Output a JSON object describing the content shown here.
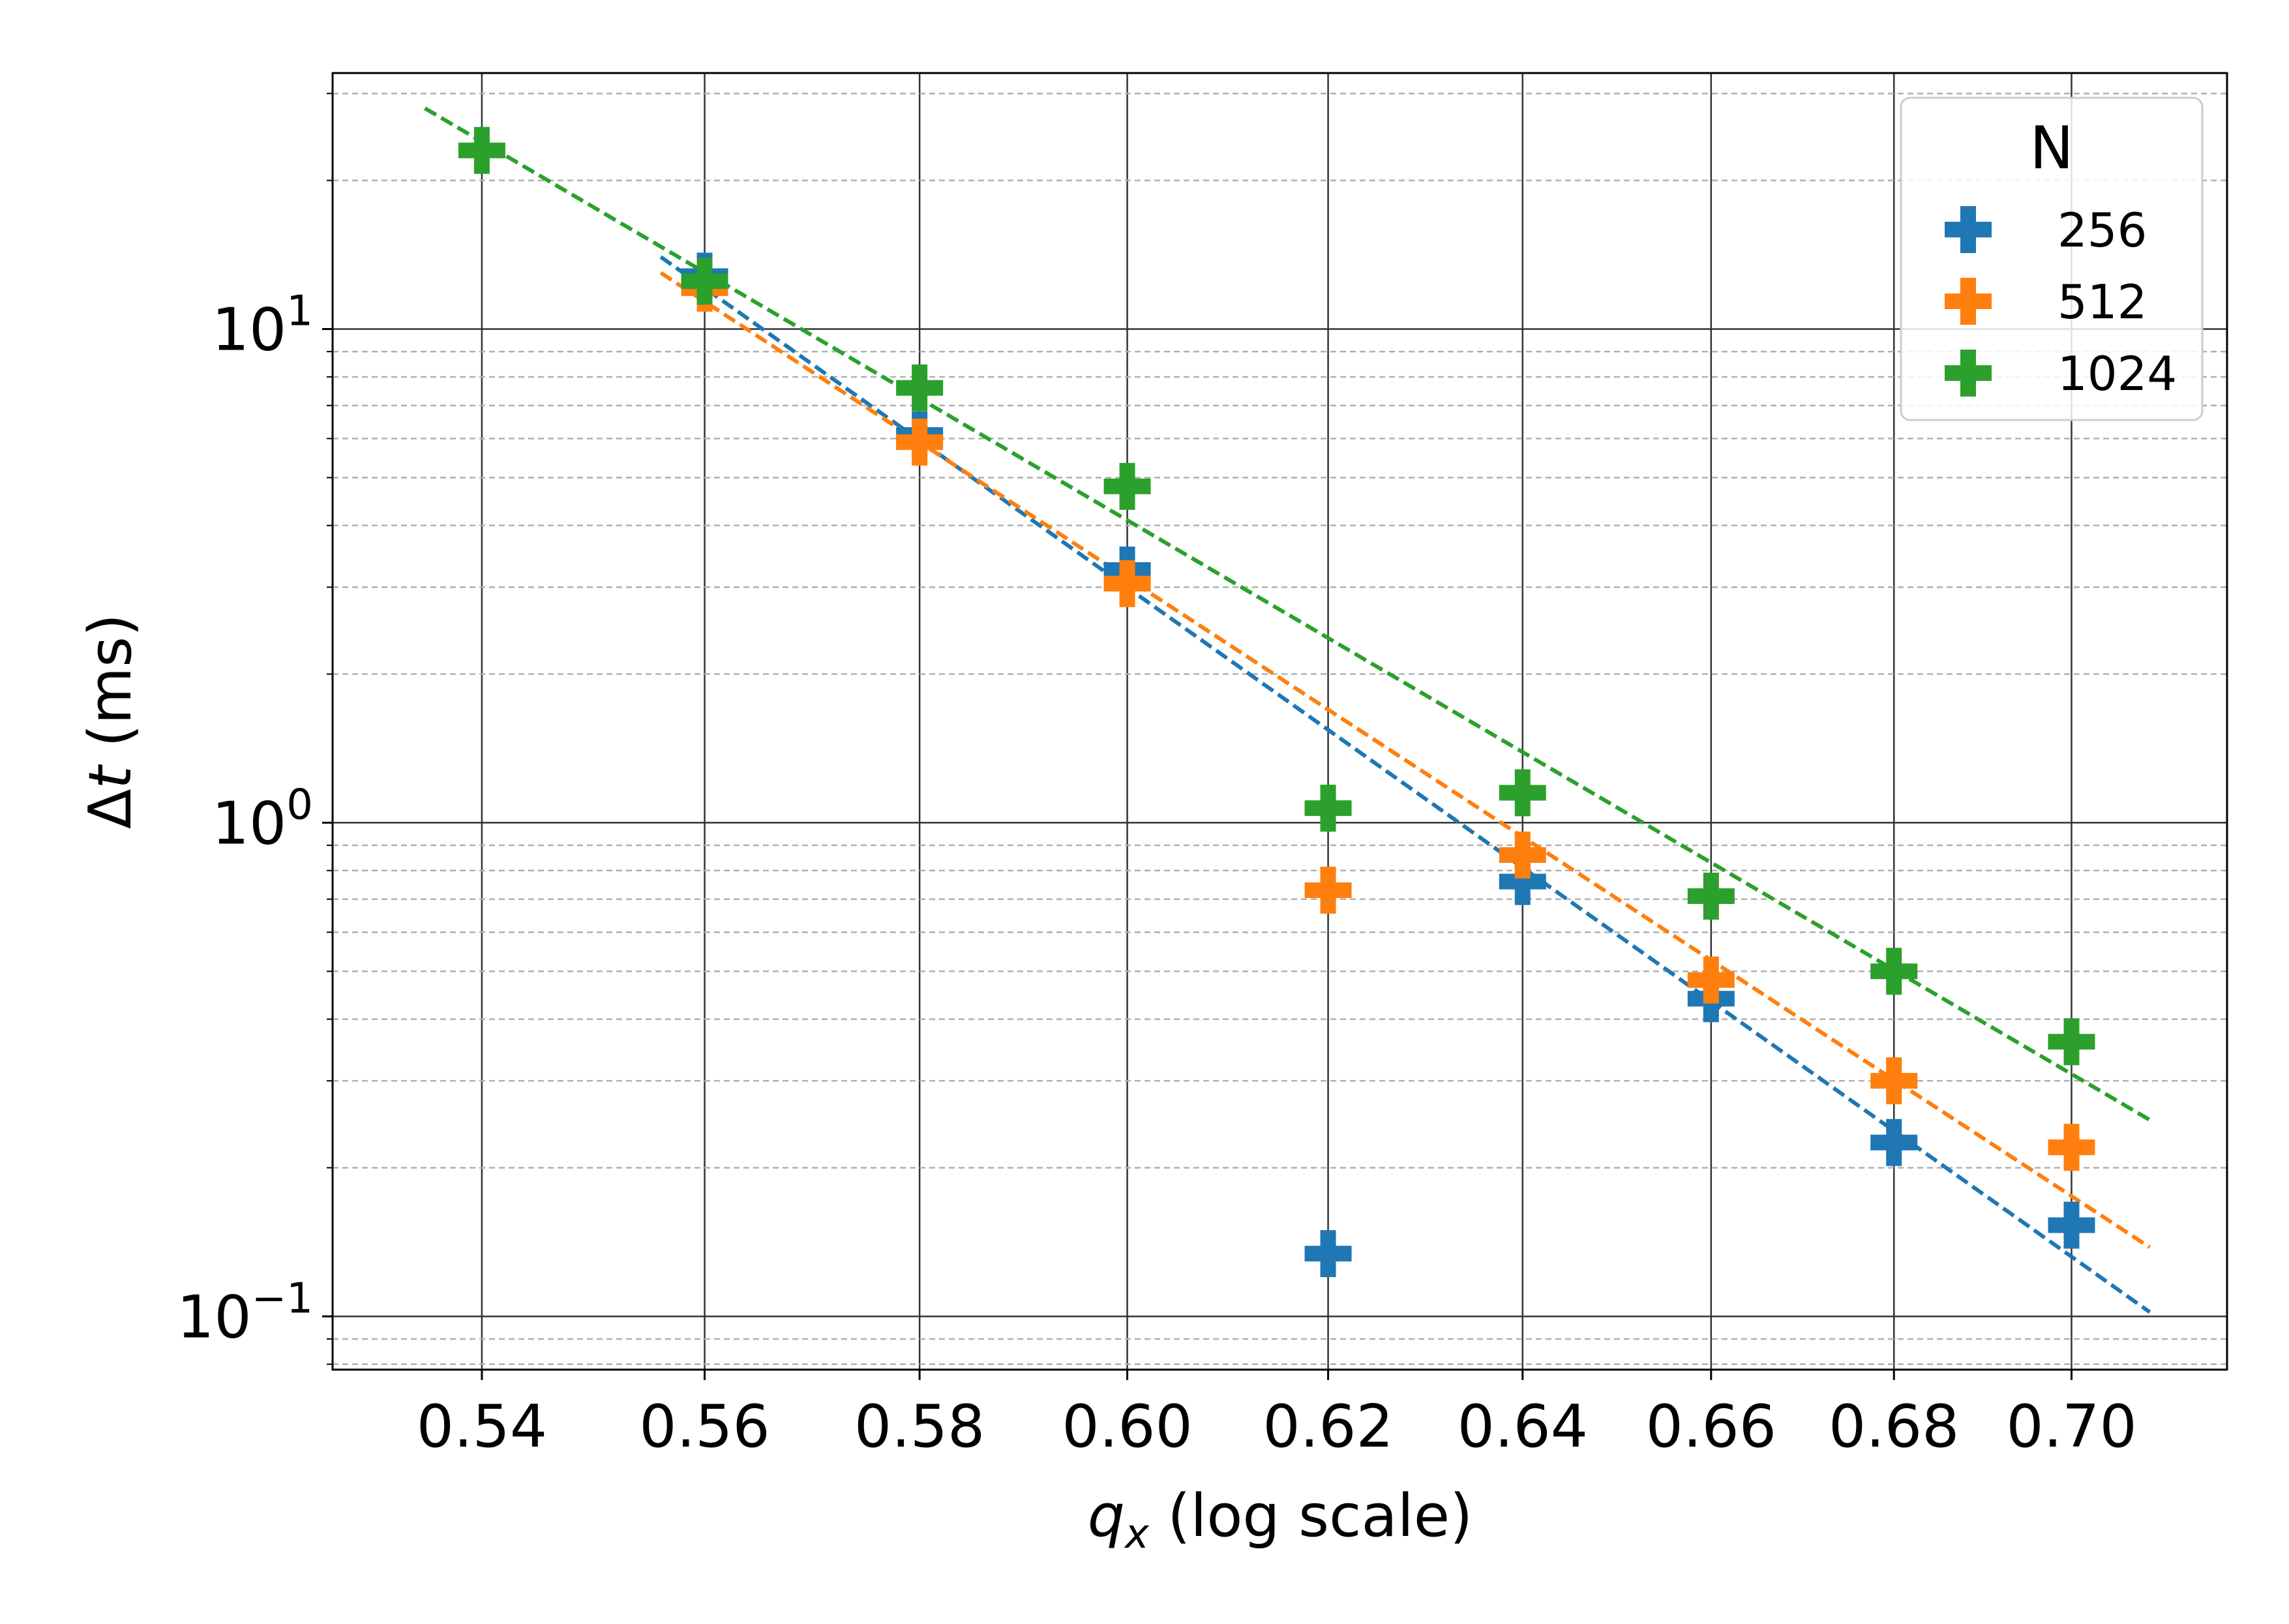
{
  "chart_data": {
    "type": "scatter",
    "title": "",
    "xlabel": "q",
    "xlabel_subscript": "x",
    "xlabel_suffix": " (log scale)",
    "ylabel": "Δt (ms)",
    "x_scale": "log",
    "y_scale": "log",
    "xlim": [
      0.527,
      0.718
    ],
    "ylim": [
      0.078,
      33.0
    ],
    "x_ticks": [
      0.54,
      0.56,
      0.58,
      0.6,
      0.62,
      0.64,
      0.66,
      0.68,
      0.7
    ],
    "x_tick_labels": [
      "0.54",
      "0.56",
      "0.58",
      "0.60",
      "0.62",
      "0.64",
      "0.66",
      "0.68",
      "0.70"
    ],
    "y_major_ticks": [
      {
        "value": 10,
        "base": "10",
        "exp": "1"
      },
      {
        "value": 1,
        "base": "10",
        "exp": "0"
      },
      {
        "value": 0.1,
        "base": "10",
        "exp": "−1"
      }
    ],
    "grid": "on (major solid, minor dashed)",
    "legend": {
      "title": "N",
      "position": "top-right"
    },
    "series": [
      {
        "name": "256",
        "color": "#1f77b4",
        "x": [
          0.56,
          0.58,
          0.6,
          0.62,
          0.64,
          0.66,
          0.68,
          0.7
        ],
        "y": [
          12.8,
          6.1,
          3.25,
          0.134,
          0.76,
          0.44,
          0.225,
          0.153
        ],
        "fit": {
          "x": [
            0.556,
            0.709
          ],
          "y": [
            14.0,
            0.102
          ]
        }
      },
      {
        "name": "512",
        "color": "#ff7f0e",
        "x": [
          0.56,
          0.58,
          0.6,
          0.62,
          0.64,
          0.66,
          0.68,
          0.7
        ],
        "y": [
          12.1,
          5.9,
          3.05,
          0.73,
          0.86,
          0.48,
          0.3,
          0.22
        ],
        "fit": {
          "x": [
            0.556,
            0.709
          ],
          "y": [
            13.0,
            0.138
          ]
        }
      },
      {
        "name": "1024",
        "color": "#2ca02c",
        "x": [
          0.54,
          0.56,
          0.58,
          0.6,
          0.62,
          0.64,
          0.66,
          0.68,
          0.7
        ],
        "y": [
          23.0,
          12.5,
          7.6,
          4.8,
          1.07,
          1.15,
          0.71,
          0.5,
          0.36
        ],
        "fit": {
          "x": [
            0.535,
            0.709
          ],
          "y": [
            28.0,
            0.25
          ]
        }
      }
    ]
  }
}
